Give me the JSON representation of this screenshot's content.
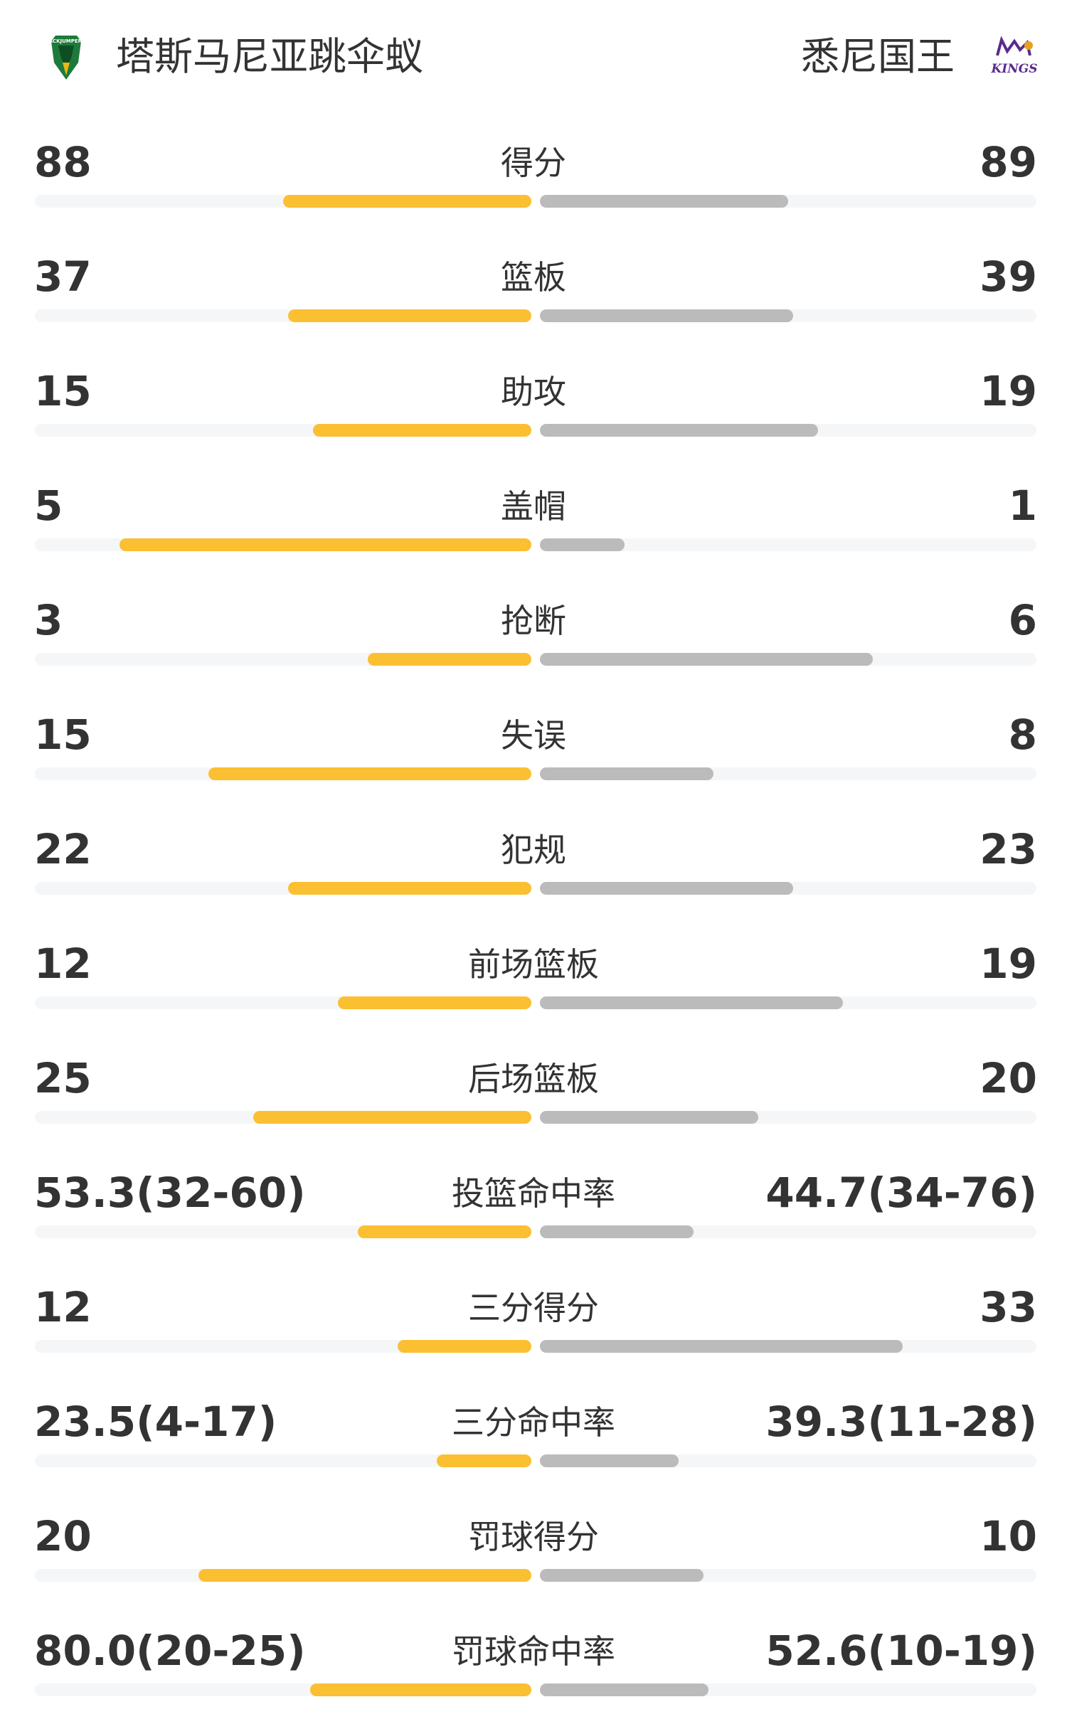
{
  "header": {
    "home_team": "塔斯马尼亚跳伞蚁",
    "away_team": "悉尼国王",
    "home_logo_text": "JACKJUMPERS",
    "away_logo_text": "KINGS",
    "home_logo_icon": "jackjumpers-logo",
    "away_logo_icon": "sydney-kings-logo"
  },
  "colors": {
    "home_bar": "#fbbf32",
    "away_bar": "#bbbbbb",
    "track": "#f5f6f8"
  },
  "stats": [
    {
      "label": "得分",
      "home": "88",
      "away": "89",
      "home_fill": 0.5,
      "away_fill": 0.5
    },
    {
      "label": "篮板",
      "home": "37",
      "away": "39",
      "home_fill": 0.49,
      "away_fill": 0.51
    },
    {
      "label": "助攻",
      "home": "15",
      "away": "19",
      "home_fill": 0.44,
      "away_fill": 0.56
    },
    {
      "label": "盖帽",
      "home": "5",
      "away": "1",
      "home_fill": 0.83,
      "away_fill": 0.17
    },
    {
      "label": "抢断",
      "home": "3",
      "away": "6",
      "home_fill": 0.33,
      "away_fill": 0.67
    },
    {
      "label": "失误",
      "home": "15",
      "away": "8",
      "home_fill": 0.65,
      "away_fill": 0.35
    },
    {
      "label": "犯规",
      "home": "22",
      "away": "23",
      "home_fill": 0.49,
      "away_fill": 0.51
    },
    {
      "label": "前场篮板",
      "home": "12",
      "away": "19",
      "home_fill": 0.39,
      "away_fill": 0.61
    },
    {
      "label": "后场篮板",
      "home": "25",
      "away": "20",
      "home_fill": 0.56,
      "away_fill": 0.44
    },
    {
      "label": "投篮命中率",
      "home": "53.3(32-60)",
      "away": "44.7(34-76)",
      "home_fill": 0.35,
      "away_fill": 0.31
    },
    {
      "label": "三分得分",
      "home": "12",
      "away": "33",
      "home_fill": 0.27,
      "away_fill": 0.73
    },
    {
      "label": "三分命中率",
      "home": "23.5(4-17)",
      "away": "39.3(11-28)",
      "home_fill": 0.19,
      "away_fill": 0.28
    },
    {
      "label": "罚球得分",
      "home": "20",
      "away": "10",
      "home_fill": 0.67,
      "away_fill": 0.33
    },
    {
      "label": "罚球命中率",
      "home": "80.0(20-25)",
      "away": "52.6(10-19)",
      "home_fill": 0.445,
      "away_fill": 0.34
    }
  ]
}
